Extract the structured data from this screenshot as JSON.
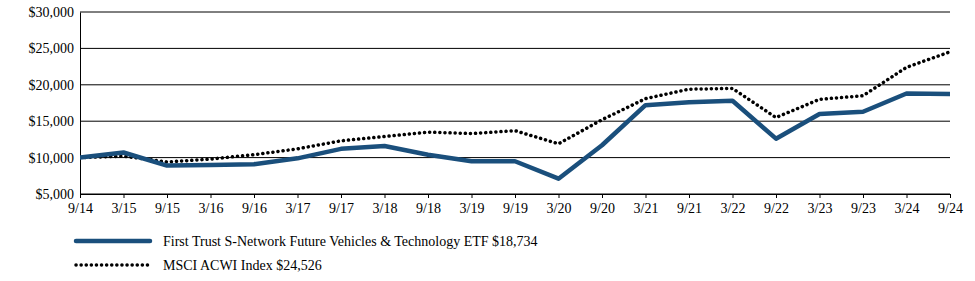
{
  "chart_data": {
    "type": "line",
    "categories": [
      "9/14",
      "3/15",
      "9/15",
      "3/16",
      "9/16",
      "3/17",
      "9/17",
      "3/18",
      "9/18",
      "3/19",
      "9/19",
      "3/20",
      "9/20",
      "3/21",
      "9/21",
      "3/22",
      "9/22",
      "3/23",
      "9/23",
      "3/24",
      "9/24"
    ],
    "series": [
      {
        "name": "First Trust S-Network Future Vehicles & Technology ETF $18,734",
        "color": "#1a4f7c",
        "line_style": "solid",
        "values": [
          10000,
          10700,
          8900,
          9000,
          9100,
          9900,
          11200,
          11600,
          10400,
          9500,
          9500,
          7100,
          11700,
          17200,
          17600,
          17800,
          12600,
          16000,
          16300,
          18800,
          18734
        ]
      },
      {
        "name": "MSCI ACWI Index $24,526",
        "color": "#000000",
        "line_style": "dotted",
        "values": [
          10000,
          10200,
          9400,
          9800,
          10400,
          11200,
          12300,
          12900,
          13500,
          13300,
          13700,
          11900,
          15200,
          18100,
          19400,
          19500,
          15500,
          18000,
          18500,
          22400,
          24526
        ]
      }
    ],
    "ylim": [
      5000,
      30000
    ],
    "yticks": [
      {
        "value": 5000,
        "label": "$5,000"
      },
      {
        "value": 10000,
        "label": "$10,000"
      },
      {
        "value": 15000,
        "label": "$15,000"
      },
      {
        "value": 20000,
        "label": "$20,000"
      },
      {
        "value": 25000,
        "label": "$25,000"
      },
      {
        "value": 30000,
        "label": "$30,000"
      }
    ],
    "grid": true,
    "legend": "bottom"
  }
}
